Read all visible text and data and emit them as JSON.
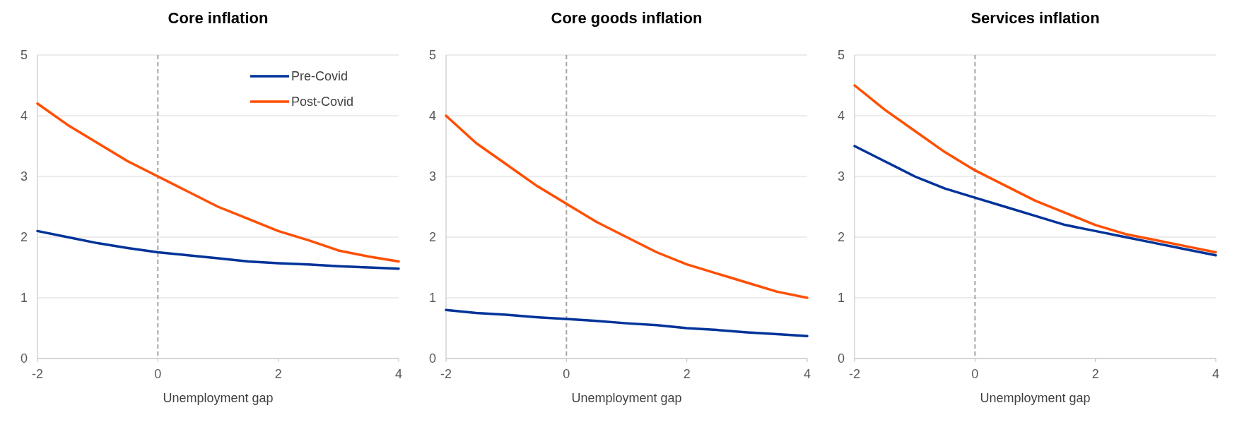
{
  "chart_data": [
    {
      "type": "line",
      "title": "Core inflation",
      "xlabel": "Unemployment gap",
      "x": [
        -2,
        -1.5,
        -1,
        -0.5,
        0,
        0.5,
        1,
        1.5,
        2,
        2.5,
        3,
        3.5,
        4
      ],
      "xlim": [
        -2,
        4
      ],
      "xticks": [
        -2,
        0,
        2,
        4
      ],
      "ylim": [
        0,
        5
      ],
      "yticks": [
        0,
        1,
        2,
        3,
        4,
        5
      ],
      "grid": "y",
      "legend": "top right",
      "ref_lines": [
        {
          "axis": "x",
          "value": 0,
          "color": "#a6a6a6",
          "line_style": "dashed"
        }
      ],
      "series": [
        {
          "name": "Pre-Covid",
          "color": "#003399",
          "values": [
            2.1,
            2.0,
            1.9,
            1.82,
            1.75,
            1.7,
            1.65,
            1.6,
            1.57,
            1.55,
            1.52,
            1.5,
            1.48
          ]
        },
        {
          "name": "Post-Covid",
          "color": "#ff4f00",
          "values": [
            4.2,
            3.85,
            3.55,
            3.25,
            3.0,
            2.75,
            2.5,
            2.3,
            2.1,
            1.95,
            1.78,
            1.68,
            1.6
          ]
        }
      ]
    },
    {
      "type": "line",
      "title": "Core goods inflation",
      "xlabel": "Unemployment gap",
      "x": [
        -2,
        -1.5,
        -1,
        -0.5,
        0,
        0.5,
        1,
        1.5,
        2,
        2.5,
        3,
        3.5,
        4
      ],
      "xlim": [
        -2,
        4
      ],
      "xticks": [
        -2,
        0,
        2,
        4
      ],
      "ylim": [
        0,
        5
      ],
      "yticks": [
        0,
        1,
        2,
        3,
        4,
        5
      ],
      "grid": "y",
      "ref_lines": [
        {
          "axis": "x",
          "value": 0,
          "color": "#a6a6a6",
          "line_style": "dashed"
        }
      ],
      "series": [
        {
          "color": "#003399",
          "values": [
            0.8,
            0.75,
            0.72,
            0.68,
            0.65,
            0.62,
            0.58,
            0.55,
            0.5,
            0.47,
            0.43,
            0.4,
            0.37
          ]
        },
        {
          "color": "#ff4f00",
          "values": [
            4.0,
            3.55,
            3.2,
            2.85,
            2.55,
            2.25,
            2.0,
            1.75,
            1.55,
            1.4,
            1.25,
            1.1,
            1.0
          ]
        }
      ]
    },
    {
      "type": "line",
      "title": "Services inflation",
      "xlabel": "Unemployment gap",
      "x": [
        -2,
        -1.5,
        -1,
        -0.5,
        0,
        0.5,
        1,
        1.5,
        2,
        2.5,
        3,
        3.5,
        4
      ],
      "xlim": [
        -2,
        4
      ],
      "xticks": [
        -2,
        0,
        2,
        4
      ],
      "ylim": [
        0,
        5
      ],
      "yticks": [
        0,
        1,
        2,
        3,
        4,
        5
      ],
      "grid": "y",
      "ref_lines": [
        {
          "axis": "x",
          "value": 0,
          "color": "#a6a6a6",
          "line_style": "dashed"
        }
      ],
      "series": [
        {
          "color": "#003399",
          "values": [
            3.5,
            3.25,
            3.0,
            2.8,
            2.65,
            2.5,
            2.35,
            2.2,
            2.1,
            2.0,
            1.9,
            1.8,
            1.7
          ]
        },
        {
          "color": "#ff4f00",
          "values": [
            4.5,
            4.1,
            3.75,
            3.4,
            3.1,
            2.85,
            2.6,
            2.4,
            2.2,
            2.05,
            1.95,
            1.85,
            1.75
          ]
        }
      ]
    }
  ]
}
